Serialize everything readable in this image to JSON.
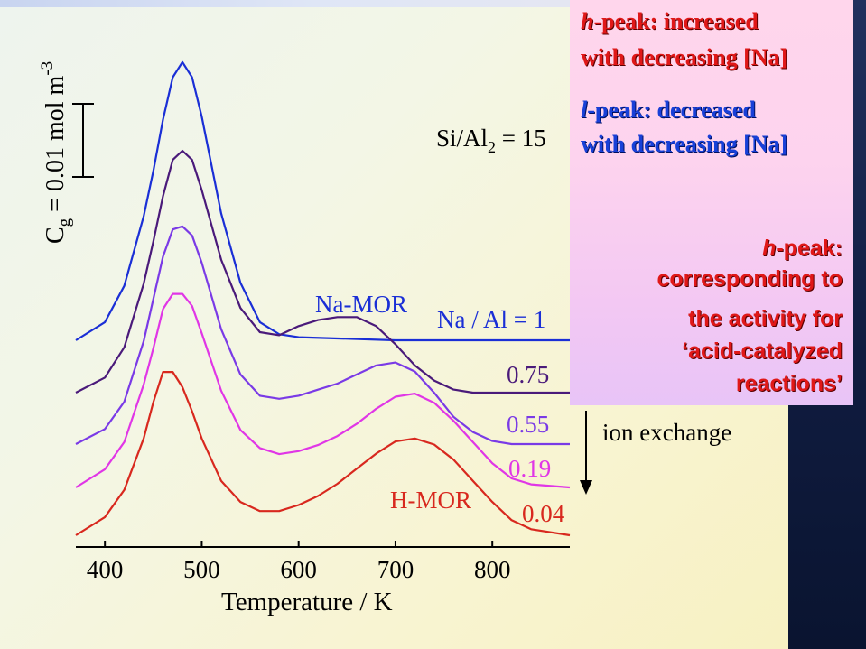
{
  "chart_data": {
    "type": "line",
    "title": "",
    "xlabel": "Temperature / K",
    "ylabel_prefix": "C",
    "ylabel_sub": "g",
    "ylabel_main": " = 0.01 mol m",
    "ylabel_sup": "-3",
    "xticks": [
      400,
      500,
      600,
      700,
      800
    ],
    "xlim": [
      370,
      880
    ],
    "series": [
      {
        "name": "Na / Al = 1",
        "color": "#1a2fd6",
        "offset": 0.0,
        "x": [
          370,
          400,
          420,
          440,
          450,
          460,
          470,
          480,
          490,
          500,
          520,
          540,
          560,
          580,
          600,
          650,
          700,
          720,
          760,
          800,
          820,
          880
        ],
        "y": [
          0.0,
          0.6,
          1.8,
          4.1,
          5.6,
          7.3,
          8.7,
          9.2,
          8.7,
          7.4,
          4.2,
          1.9,
          0.6,
          0.2,
          0.1,
          0.05,
          0.0,
          0.0,
          0.0,
          0.0,
          0.0,
          0.0
        ]
      },
      {
        "name": "0.75",
        "color": "#4a1a7a",
        "offset": 0.0,
        "x": [
          370,
          400,
          420,
          440,
          450,
          460,
          470,
          480,
          490,
          500,
          520,
          540,
          560,
          580,
          600,
          620,
          640,
          660,
          680,
          700,
          720,
          740,
          760,
          780,
          800,
          820,
          880
        ],
        "y": [
          0.0,
          0.5,
          1.5,
          3.6,
          5.0,
          6.5,
          7.7,
          8.0,
          7.7,
          6.7,
          4.4,
          2.8,
          2.0,
          1.9,
          2.2,
          2.4,
          2.5,
          2.5,
          2.2,
          1.6,
          0.9,
          0.4,
          0.1,
          0.0,
          0.0,
          0.0,
          0.0
        ]
      },
      {
        "name": "0.55",
        "color": "#7a3ae6",
        "offset": 0.0,
        "x": [
          370,
          400,
          420,
          440,
          450,
          460,
          470,
          480,
          490,
          500,
          520,
          540,
          560,
          580,
          600,
          620,
          640,
          660,
          680,
          700,
          720,
          740,
          760,
          780,
          800,
          820,
          880
        ],
        "y": [
          0.0,
          0.5,
          1.4,
          3.4,
          4.8,
          6.2,
          7.1,
          7.2,
          6.9,
          6.0,
          3.8,
          2.3,
          1.6,
          1.5,
          1.6,
          1.8,
          2.0,
          2.3,
          2.6,
          2.7,
          2.4,
          1.7,
          0.9,
          0.4,
          0.1,
          0.0,
          0.0
        ]
      },
      {
        "name": "0.19",
        "color": "#e036e6",
        "offset": 0.0,
        "x": [
          370,
          400,
          420,
          440,
          450,
          460,
          470,
          480,
          490,
          500,
          520,
          540,
          560,
          580,
          600,
          620,
          640,
          660,
          680,
          700,
          720,
          740,
          760,
          780,
          800,
          820,
          840,
          880
        ],
        "y": [
          0.0,
          0.6,
          1.5,
          3.4,
          4.6,
          5.9,
          6.4,
          6.4,
          6.0,
          5.1,
          3.2,
          1.9,
          1.3,
          1.1,
          1.2,
          1.4,
          1.7,
          2.1,
          2.6,
          3.0,
          3.1,
          2.8,
          2.2,
          1.5,
          0.8,
          0.3,
          0.1,
          0.0
        ]
      },
      {
        "name": "0.04",
        "color": "#d8281e",
        "offset": 0.0,
        "x": [
          370,
          400,
          420,
          440,
          450,
          460,
          470,
          480,
          490,
          500,
          520,
          540,
          560,
          580,
          600,
          620,
          640,
          660,
          680,
          700,
          720,
          740,
          760,
          780,
          800,
          820,
          840,
          880
        ],
        "y": [
          0.0,
          0.6,
          1.5,
          3.2,
          4.4,
          5.4,
          5.4,
          4.9,
          4.1,
          3.2,
          1.8,
          1.1,
          0.8,
          0.8,
          1.0,
          1.3,
          1.7,
          2.2,
          2.7,
          3.1,
          3.2,
          3.0,
          2.5,
          1.8,
          1.1,
          0.5,
          0.2,
          0.0
        ]
      }
    ],
    "labels": {
      "na_mor": "Na-MOR",
      "h_mor": "H-MOR",
      "si_al_prefix": "Si/Al",
      "si_al_sub": "2",
      "si_al_suffix": " = 15",
      "ion_exchange": "ion exchange"
    }
  },
  "callout": {
    "h_peak_1": "h",
    "h_peak_1_rest": "-peak: increased",
    "h_peak_2": "with decreasing [Na]",
    "l_peak_1": "l",
    "l_peak_1_rest": "-peak: decreased",
    "l_peak_2": "with decreasing [Na]",
    "s1_italic": "h",
    "s1_rest": "-peak:",
    "s2": "corresponding to",
    "s3": "the activity for",
    "s4": "‘acid-catalyzed",
    "s5": "reactions’"
  },
  "colors": {
    "red": "#e01818",
    "blue": "#1840d8",
    "callout_bg": "#fdd3ee"
  }
}
